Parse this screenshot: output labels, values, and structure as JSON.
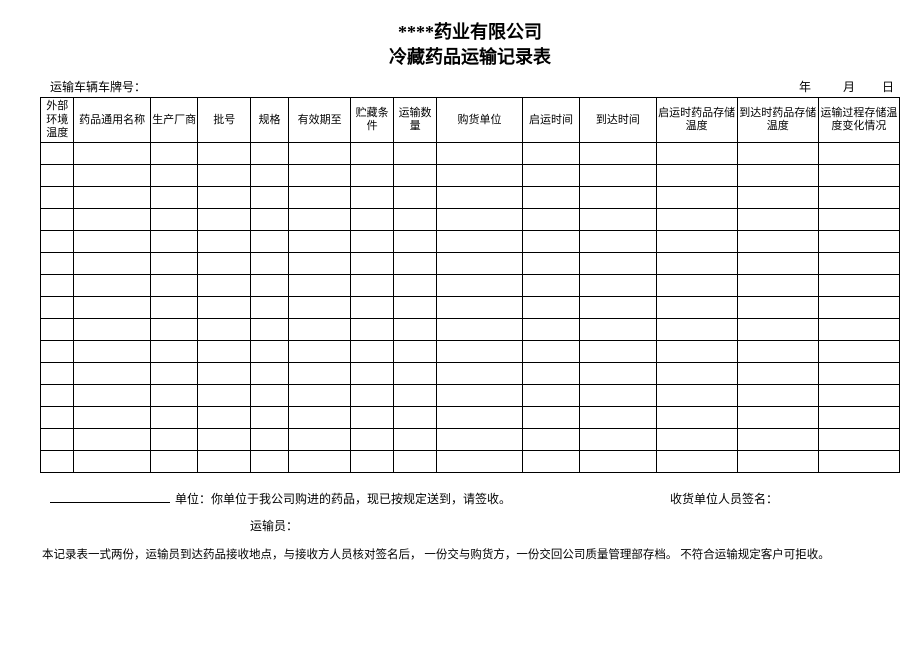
{
  "title_line1": "****药业有限公司",
  "title_line2": "冷藏药品运输记录表",
  "plate_label": "运输车辆车牌号：",
  "date_text": "年      月     日",
  "headers": [
    "外部环境温度",
    "药品通用名称",
    "生产厂商",
    "批号",
    "规格",
    "有效期至",
    "贮藏条件",
    "运输数量",
    "购货单位",
    "启运时间",
    "到达时间",
    "启运时药品存储温度",
    "到达时药品存储温度",
    "运输过程存储温度变化情况"
  ],
  "row_count": 15,
  "col_count": 14,
  "footer": {
    "unit_suffix": "单位：你单位于我公司购进的药品，现已按规定送到，请签收。",
    "sign_label": "收货单位人员签名：",
    "transporter_label": "运输员：",
    "note": "本记录表一式两份，运输员到达药品接收地点，与接收方人员核对签名后，   一份交与购货方，一份交回公司质量管理部存档。   不符合运输规定客户可拒收。"
  },
  "colors": {
    "border": "#000000",
    "background": "#ffffff",
    "text": "#000000"
  }
}
